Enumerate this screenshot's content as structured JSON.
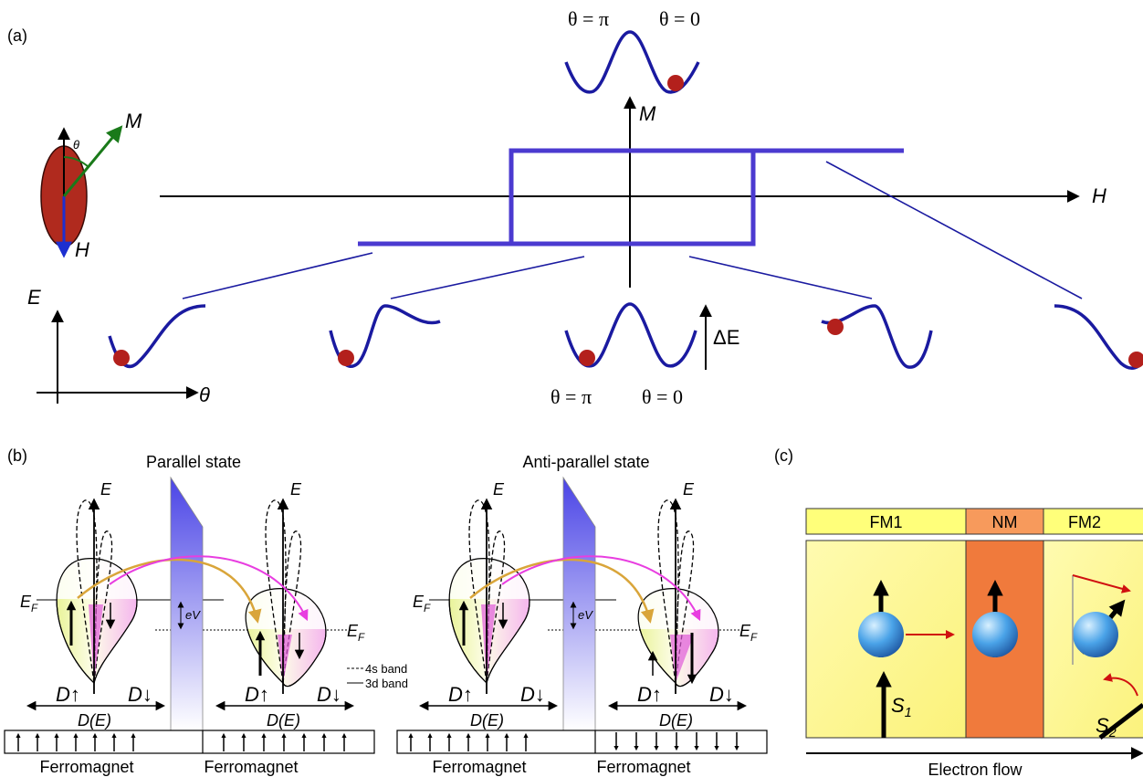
{
  "panel_a": {
    "label": "(a)",
    "top_well_labels": [
      "θ = π",
      "θ = 0"
    ],
    "bottom_well_labels": [
      "θ = π",
      "θ = 0"
    ],
    "axis_M": "M",
    "axis_H": "H",
    "particle": {
      "theta": "θ",
      "M": "M",
      "H": "H"
    },
    "energy_axes": {
      "y": "E",
      "x": "θ"
    },
    "barrier": "ΔE"
  },
  "panel_b": {
    "label": "(b)",
    "states": [
      {
        "title": "Parallel state",
        "axis_left": "E",
        "axis_right": "E",
        "fermi_left": {
          "main": "E",
          "sub": "F"
        },
        "fermi_right": {
          "main": "E",
          "sub": "F"
        },
        "bias": "eV",
        "dos_left": [
          "D↑",
          "D↓",
          "D(E)"
        ],
        "dos_right": [
          "D↑",
          "D↓",
          "D(E)"
        ],
        "magnets": [
          "Ferromagnet",
          "Ferromagnet"
        ]
      },
      {
        "title": "Anti-parallel state",
        "axis_left": "E",
        "axis_right": "E",
        "fermi_left": {
          "main": "E",
          "sub": "F"
        },
        "fermi_right": {
          "main": "E",
          "sub": "F"
        },
        "bias": "eV",
        "dos_left": [
          "D↑",
          "D↓",
          "D(E)"
        ],
        "dos_right": [
          "D↑",
          "D↓",
          "D(E)"
        ],
        "magnets": [
          "Ferromagnet",
          "Ferromagnet"
        ]
      }
    ],
    "legend": [
      "4s band",
      "3d band"
    ]
  },
  "panel_c": {
    "label": "(c)",
    "layers": [
      "FM1",
      "NM",
      "FM2"
    ],
    "spin1": {
      "main": "S",
      "sub": "1"
    },
    "spin2": {
      "main": "S",
      "sub": "2"
    },
    "flow": "Electron flow"
  }
}
